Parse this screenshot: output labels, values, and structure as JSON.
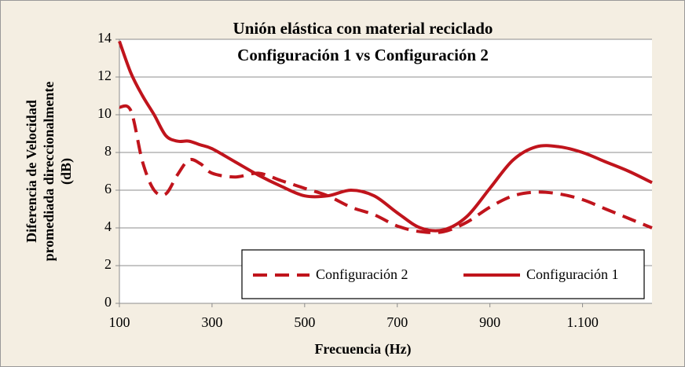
{
  "chart_data": {
    "type": "line",
    "title": [
      "Unión elástica con material reciclado",
      "Configuración 1 vs Configuración 2"
    ],
    "y_label": [
      "Diferencia de Velocidad",
      "promediada direccionalmente",
      "(dB)"
    ],
    "x_label": "Frecuencia (Hz)",
    "x": [
      100,
      125,
      150,
      175,
      200,
      225,
      250,
      275,
      300,
      350,
      400,
      450,
      500,
      550,
      600,
      650,
      700,
      750,
      800,
      850,
      900,
      950,
      1000,
      1050,
      1100,
      1150,
      1200,
      1250
    ],
    "series": [
      {
        "name": "Configuración 2",
        "color": "#c0141c",
        "dash": true,
        "values": [
          10.4,
          10.2,
          7.5,
          6.0,
          5.8,
          6.8,
          7.6,
          7.4,
          6.9,
          6.7,
          6.9,
          6.5,
          6.1,
          5.7,
          5.1,
          4.7,
          4.1,
          3.8,
          3.8,
          4.3,
          5.1,
          5.7,
          5.9,
          5.8,
          5.5,
          5.0,
          4.5,
          4.0
        ]
      },
      {
        "name": "Configuración 1",
        "color": "#c0141c",
        "dash": false,
        "values": [
          13.9,
          12.2,
          11.0,
          10.0,
          8.9,
          8.6,
          8.6,
          8.4,
          8.2,
          7.5,
          6.8,
          6.2,
          5.7,
          5.7,
          6.0,
          5.7,
          4.8,
          4.0,
          3.9,
          4.6,
          6.1,
          7.6,
          8.3,
          8.3,
          8.0,
          7.5,
          7.0,
          6.4
        ]
      }
    ],
    "xlim": [
      100,
      1250
    ],
    "xticks": [
      100,
      300,
      500,
      700,
      900,
      {
        "value": 1100,
        "label": "1.100"
      }
    ],
    "ylim": [
      0,
      14
    ],
    "yticks": [
      0,
      2,
      4,
      6,
      8,
      10,
      12,
      14
    ],
    "grid": true,
    "legend": "bottom-right"
  }
}
